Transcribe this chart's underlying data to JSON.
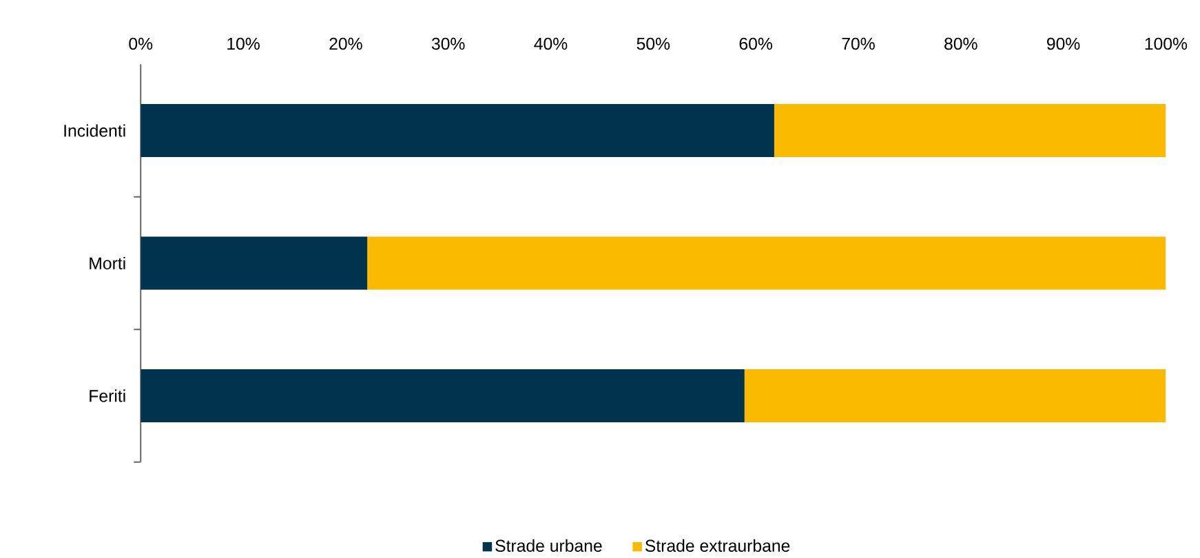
{
  "chart_data": {
    "type": "bar",
    "orientation": "horizontal",
    "stacked": true,
    "categories": [
      "Incidenti",
      "Morti",
      "Feriti"
    ],
    "series": [
      {
        "name": "Strade urbane",
        "color": "#00334d",
        "values": [
          61.8,
          22.1,
          58.9
        ]
      },
      {
        "name": "Strade extraurbane",
        "color": "#f9ba00",
        "values": [
          38.2,
          77.9,
          41.1
        ]
      }
    ],
    "xlim": [
      0,
      100
    ],
    "xticks": [
      {
        "value": 0,
        "label": "0%"
      },
      {
        "value": 10,
        "label": "10%"
      },
      {
        "value": 20,
        "label": "20%"
      },
      {
        "value": 30,
        "label": "30%"
      },
      {
        "value": 40,
        "label": "40%"
      },
      {
        "value": 50,
        "label": "50%"
      },
      {
        "value": 60,
        "label": "60%"
      },
      {
        "value": 70,
        "label": "70%"
      },
      {
        "value": 80,
        "label": "80%"
      },
      {
        "value": 90,
        "label": "90%"
      },
      {
        "value": 100,
        "label": "100%"
      }
    ],
    "grid": false,
    "legend": "bottom"
  }
}
